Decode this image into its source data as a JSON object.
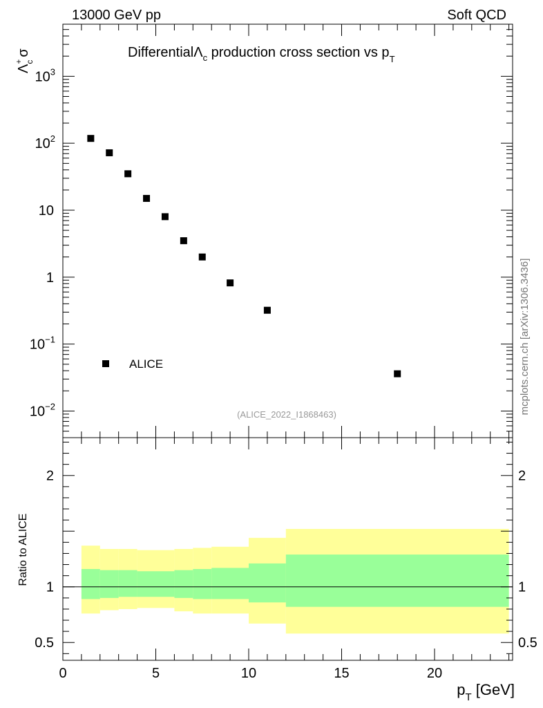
{
  "header": {
    "left": "13000 GeV pp",
    "right": "Soft QCD"
  },
  "watermark": "mcplots.cern.ch [arXiv:1306.3436]",
  "colors": {
    "marker": "#000000",
    "band_outer": "#ffff99",
    "band_inner": "#99ff99",
    "ref_id": "#999999",
    "frame": "#000000"
  },
  "chart_data": [
    {
      "type": "scatter",
      "title_prefix": "Differential",
      "title_lambda": "Λ",
      "title_lambda_sub": "c",
      "title_middle": " production cross section vs p",
      "title_pt_sub": "T",
      "ylabel_lambda": "Λ",
      "ylabel_sup": "+",
      "ylabel_sub": "c",
      "ylabel_sigma": "σ",
      "yscale": "log",
      "xlim": [
        0,
        24.2
      ],
      "ylim": [
        0.004,
        6000
      ],
      "yticks_major": [
        {
          "value": 0.01,
          "base": "10",
          "exp": "−2"
        },
        {
          "value": 0.1,
          "base": "10",
          "exp": "−1"
        },
        {
          "value": 1,
          "base": "1",
          "exp": ""
        },
        {
          "value": 10,
          "base": "10",
          "exp": ""
        },
        {
          "value": 100,
          "base": "10",
          "exp": "2"
        },
        {
          "value": 1000,
          "base": "10",
          "exp": "3"
        }
      ],
      "series": [
        {
          "name": "ALICE",
          "x": [
            1.5,
            2.5,
            3.5,
            4.5,
            5.5,
            6.5,
            7.5,
            9.0,
            11.0,
            18.0
          ],
          "y": [
            118,
            72,
            35,
            15,
            8,
            3.5,
            2.0,
            0.82,
            0.32,
            0.036
          ]
        }
      ],
      "legend": {
        "label": "ALICE",
        "position": "bottom-left"
      },
      "reference_label": "(ALICE_2022_I1868463)"
    },
    {
      "type": "area",
      "ylabel": "Ratio to ALICE",
      "xlabel_p": "p",
      "xlabel_sub": "T",
      "xlabel_unit": " [GeV]",
      "xlim": [
        0,
        24.2
      ],
      "ylim": [
        0.34,
        2.34
      ],
      "yticks": [
        {
          "value": 0.5,
          "label": "0.5"
        },
        {
          "value": 1,
          "label": "1"
        },
        {
          "value": 2,
          "label": "2"
        }
      ],
      "xticks": [
        {
          "value": 0,
          "label": "0"
        },
        {
          "value": 5,
          "label": "5"
        },
        {
          "value": 10,
          "label": "10"
        },
        {
          "value": 15,
          "label": "15"
        },
        {
          "value": 20,
          "label": "20"
        }
      ],
      "reference_line": 1.0,
      "bins": [
        {
          "x0": 1,
          "x1": 2,
          "outer": [
            0.76,
            1.37
          ],
          "inner": [
            0.89,
            1.16
          ]
        },
        {
          "x0": 2,
          "x1": 3,
          "outer": [
            0.79,
            1.34
          ],
          "inner": [
            0.9,
            1.15
          ]
        },
        {
          "x0": 3,
          "x1": 4,
          "outer": [
            0.8,
            1.34
          ],
          "inner": [
            0.91,
            1.15
          ]
        },
        {
          "x0": 4,
          "x1": 5,
          "outer": [
            0.81,
            1.33
          ],
          "inner": [
            0.91,
            1.14
          ]
        },
        {
          "x0": 5,
          "x1": 6,
          "outer": [
            0.81,
            1.33
          ],
          "inner": [
            0.91,
            1.14
          ]
        },
        {
          "x0": 6,
          "x1": 7,
          "outer": [
            0.78,
            1.34
          ],
          "inner": [
            0.9,
            1.15
          ]
        },
        {
          "x0": 7,
          "x1": 8,
          "outer": [
            0.76,
            1.35
          ],
          "inner": [
            0.89,
            1.16
          ]
        },
        {
          "x0": 8,
          "x1": 10,
          "outer": [
            0.76,
            1.36
          ],
          "inner": [
            0.89,
            1.17
          ]
        },
        {
          "x0": 10,
          "x1": 12,
          "outer": [
            0.67,
            1.44
          ],
          "inner": [
            0.86,
            1.21
          ]
        },
        {
          "x0": 12,
          "x1": 24,
          "outer": [
            0.58,
            1.52
          ],
          "inner": [
            0.82,
            1.29
          ]
        }
      ]
    }
  ]
}
